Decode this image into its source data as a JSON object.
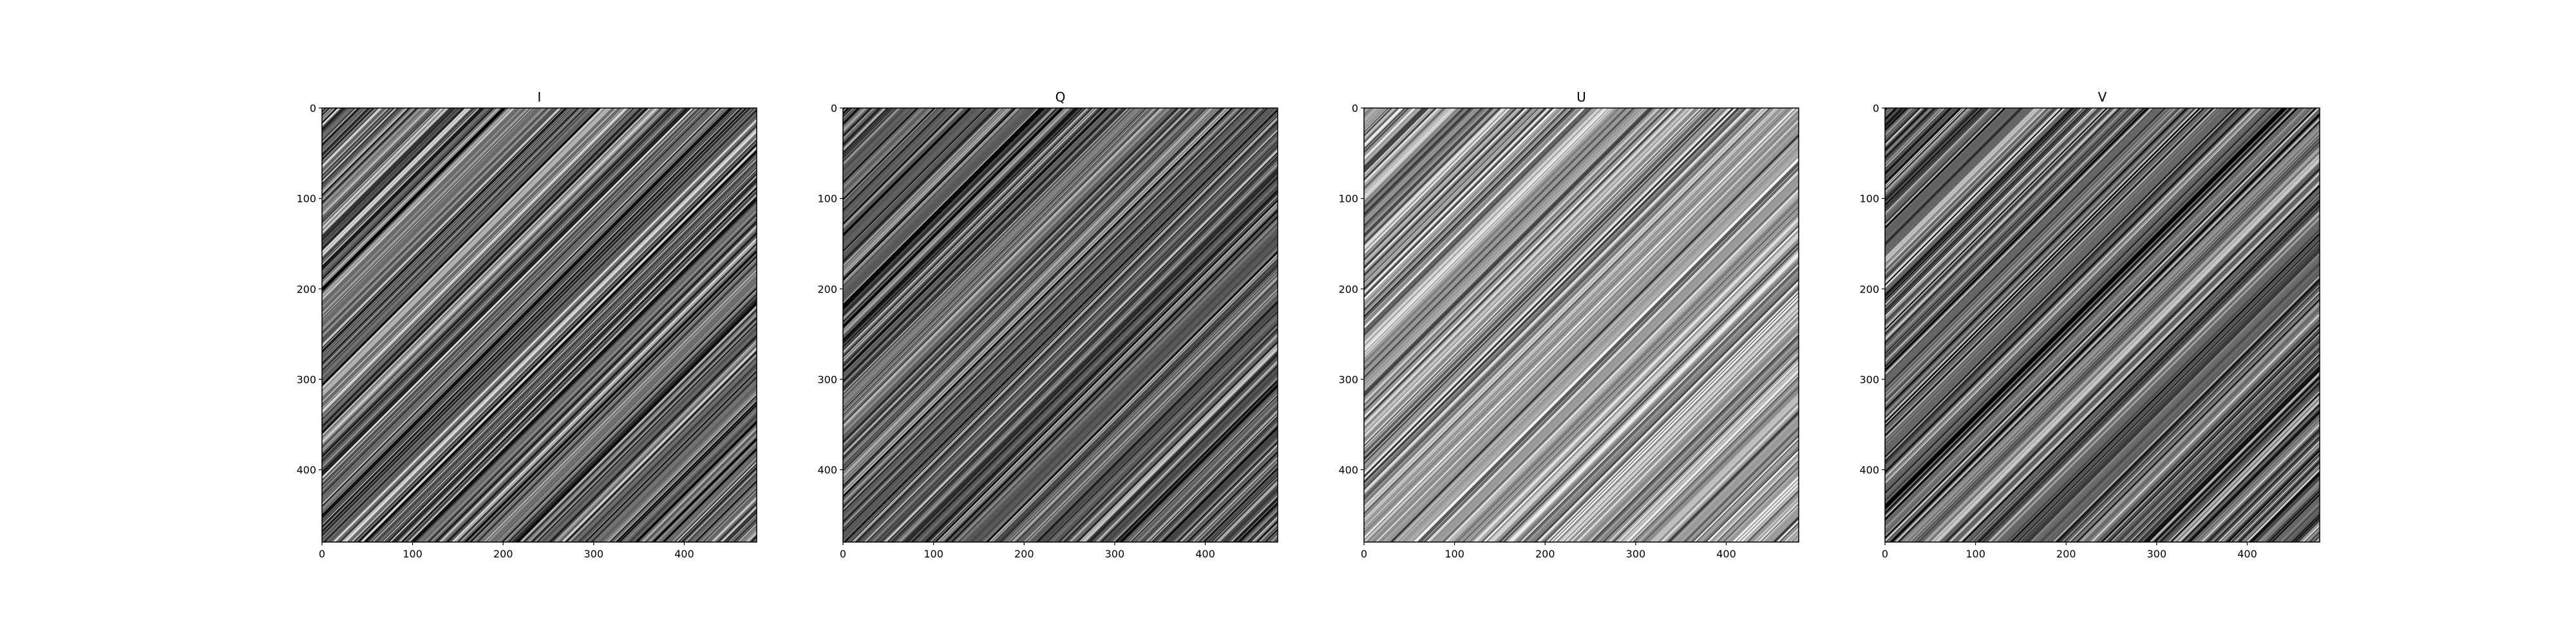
{
  "chart_data": [
    {
      "type": "heatmap",
      "title": "I",
      "colormap": "gray",
      "xlim": [
        0,
        480
      ],
      "ylim": [
        480,
        0
      ],
      "xticks": [
        0,
        100,
        200,
        300,
        400
      ],
      "yticks": [
        0,
        100,
        200,
        300,
        400
      ],
      "pattern": "diagonal streaks",
      "mean_gray": 0.42,
      "contrast": 0.45
    },
    {
      "type": "heatmap",
      "title": "Q",
      "colormap": "gray",
      "xlim": [
        0,
        480
      ],
      "ylim": [
        480,
        0
      ],
      "xticks": [
        0,
        100,
        200,
        300,
        400
      ],
      "yticks": [
        0,
        100,
        200,
        300,
        400
      ],
      "pattern": "diagonal streaks",
      "mean_gray": 0.35,
      "contrast": 0.4
    },
    {
      "type": "heatmap",
      "title": "U",
      "colormap": "gray",
      "xlim": [
        0,
        480
      ],
      "ylim": [
        480,
        0
      ],
      "xticks": [
        0,
        100,
        200,
        300,
        400
      ],
      "yticks": [
        0,
        100,
        200,
        300,
        400
      ],
      "pattern": "diagonal streaks",
      "mean_gray": 0.6,
      "contrast": 0.4
    },
    {
      "type": "heatmap",
      "title": "V",
      "colormap": "gray",
      "xlim": [
        0,
        480
      ],
      "ylim": [
        480,
        0
      ],
      "xticks": [
        0,
        100,
        200,
        300,
        400
      ],
      "yticks": [
        0,
        100,
        200,
        300,
        400
      ],
      "pattern": "diagonal streaks",
      "mean_gray": 0.4,
      "contrast": 0.45
    }
  ]
}
